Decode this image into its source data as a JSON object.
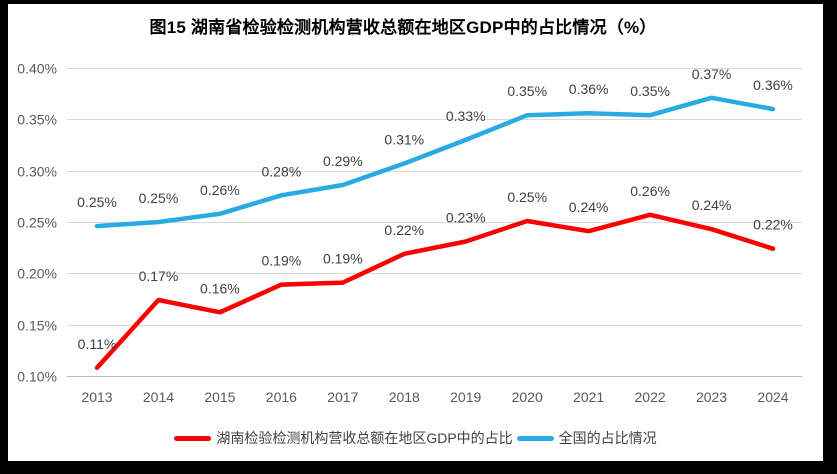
{
  "title": "图15 湖南省检验检测机构营收总额在地区GDP中的占比情况（%）",
  "colors": {
    "frame_border": "#000000",
    "panel_background": "#ffffff",
    "gridline": "#d9d9d9",
    "axis_line": "#bfbfbf",
    "tick_text": "#595959",
    "data_label_text": "#404040",
    "title_text": "#000000",
    "series_red": "#fe0000",
    "series_blue": "#29abe2"
  },
  "chart_data": {
    "type": "line",
    "title": "图15 湖南省检验检测机构营收总额在地区GDP中的占比情况（%）",
    "categories": [
      "2013",
      "2014",
      "2015",
      "2016",
      "2017",
      "2018",
      "2019",
      "2020",
      "2021",
      "2022",
      "2023",
      "2024"
    ],
    "series": [
      {
        "name": "湖南检验检测机构营收总额在地区GDP中的占比",
        "color": "#fe0000",
        "values": [
          0.108,
          0.174,
          0.162,
          0.189,
          0.191,
          0.219,
          0.231,
          0.251,
          0.241,
          0.257,
          0.243,
          0.224
        ],
        "point_labels": [
          "0.11%",
          "0.17%",
          "0.16%",
          "0.19%",
          "0.19%",
          "0.22%",
          "0.23%",
          "0.25%",
          "0.24%",
          "0.26%",
          "0.24%",
          "0.22%"
        ]
      },
      {
        "name": "全国的占比情况",
        "color": "#29abe2",
        "values": [
          0.246,
          0.25,
          0.258,
          0.276,
          0.286,
          0.307,
          0.33,
          0.354,
          0.356,
          0.354,
          0.371,
          0.36
        ],
        "point_labels": [
          "0.25%",
          "0.25%",
          "0.26%",
          "0.28%",
          "0.29%",
          "0.31%",
          "0.33%",
          "0.35%",
          "0.36%",
          "0.35%",
          "0.37%",
          "0.36%"
        ]
      }
    ],
    "y_axis": {
      "min": 0.1,
      "max": 0.4,
      "step": 0.05,
      "unit": "%",
      "tick_labels": [
        "0.10%",
        "0.15%",
        "0.20%",
        "0.25%",
        "0.30%",
        "0.35%",
        "0.40%"
      ]
    },
    "xlabel": "",
    "ylabel": "",
    "ylim": [
      0.1,
      0.4
    ],
    "grid": true,
    "legend_position": "bottom"
  }
}
